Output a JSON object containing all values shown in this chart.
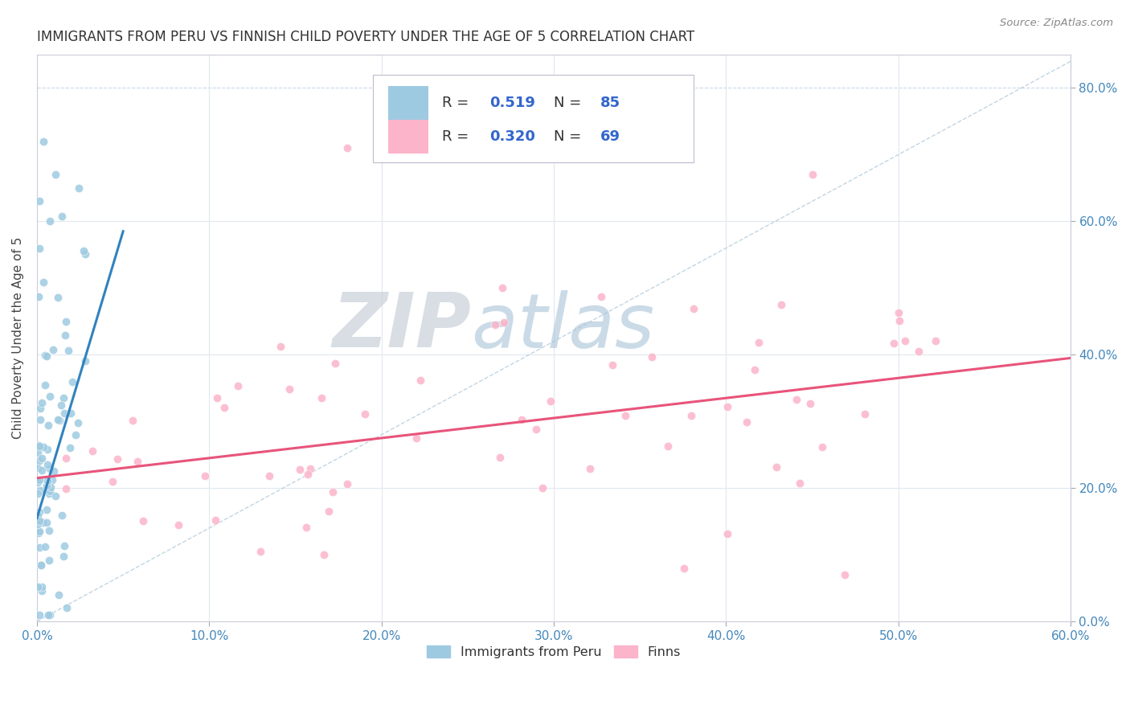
{
  "title": "IMMIGRANTS FROM PERU VS FINNISH CHILD POVERTY UNDER THE AGE OF 5 CORRELATION CHART",
  "source": "Source: ZipAtlas.com",
  "ylabel": "Child Poverty Under the Age of 5",
  "legend1_label": "Immigrants from Peru",
  "legend2_label": "Finns",
  "R1": "0.519",
  "N1": "85",
  "R2": "0.320",
  "N2": "69",
  "blue_color": "#9ecae1",
  "pink_color": "#fbb4c9",
  "blue_line_color": "#3182bd",
  "pink_line_color": "#e8547a",
  "xlim": [
    0.0,
    0.6
  ],
  "ylim": [
    0.0,
    0.85
  ],
  "xticks": [
    0.0,
    0.1,
    0.2,
    0.3,
    0.4,
    0.5,
    0.6
  ],
  "yticks": [
    0.0,
    0.2,
    0.4,
    0.6,
    0.8
  ],
  "grid_color": "#e0e8f0",
  "top_grid_color": "#c8d8e8",
  "watermark_ZIP": "ZIP",
  "watermark_atlas": "atlas",
  "watermark_color_ZIP": "#c8d0d8",
  "watermark_color_atlas": "#a8c4d8"
}
